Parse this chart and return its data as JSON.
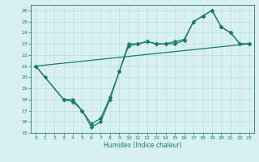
{
  "line1_x": [
    0,
    1,
    3,
    4,
    5,
    6,
    7,
    8,
    9,
    10,
    11,
    12,
    13,
    14,
    15,
    16,
    17,
    18,
    19,
    20,
    21,
    22,
    23
  ],
  "line1_y": [
    21,
    20,
    18,
    18,
    17,
    15.5,
    16,
    18,
    20.5,
    23,
    23,
    23.2,
    23,
    23,
    23,
    23.3,
    25,
    25.5,
    26,
    24.5,
    24,
    23,
    23
  ],
  "line2_x": [
    0,
    3,
    4,
    5,
    6,
    7,
    8,
    9,
    10,
    11,
    12,
    13,
    14,
    15,
    16,
    17,
    18,
    19,
    20,
    21,
    22,
    23
  ],
  "line2_y": [
    21,
    18,
    17.8,
    17,
    15.8,
    16.3,
    18.2,
    20.5,
    22.8,
    23.0,
    23.2,
    23.0,
    23.0,
    23.2,
    23.4,
    25.0,
    25.5,
    26.0,
    24.5,
    24.0,
    23.0,
    23.0
  ],
  "line3_x": [
    0,
    23
  ],
  "line3_y": [
    21.0,
    23.0
  ],
  "color": "#1a7a6a",
  "bg_color": "#d8f0f0",
  "grid_color": "#b8dede",
  "xlabel": "Humidex (Indice chaleur)",
  "xlim": [
    -0.5,
    23.5
  ],
  "ylim": [
    15,
    26.5
  ],
  "yticks": [
    15,
    16,
    17,
    18,
    19,
    20,
    21,
    22,
    23,
    24,
    25,
    26
  ],
  "xticks": [
    0,
    1,
    2,
    3,
    4,
    5,
    6,
    7,
    8,
    9,
    10,
    11,
    12,
    13,
    14,
    15,
    16,
    17,
    18,
    19,
    20,
    21,
    22,
    23
  ],
  "markersize": 2.5,
  "linewidth": 0.9
}
